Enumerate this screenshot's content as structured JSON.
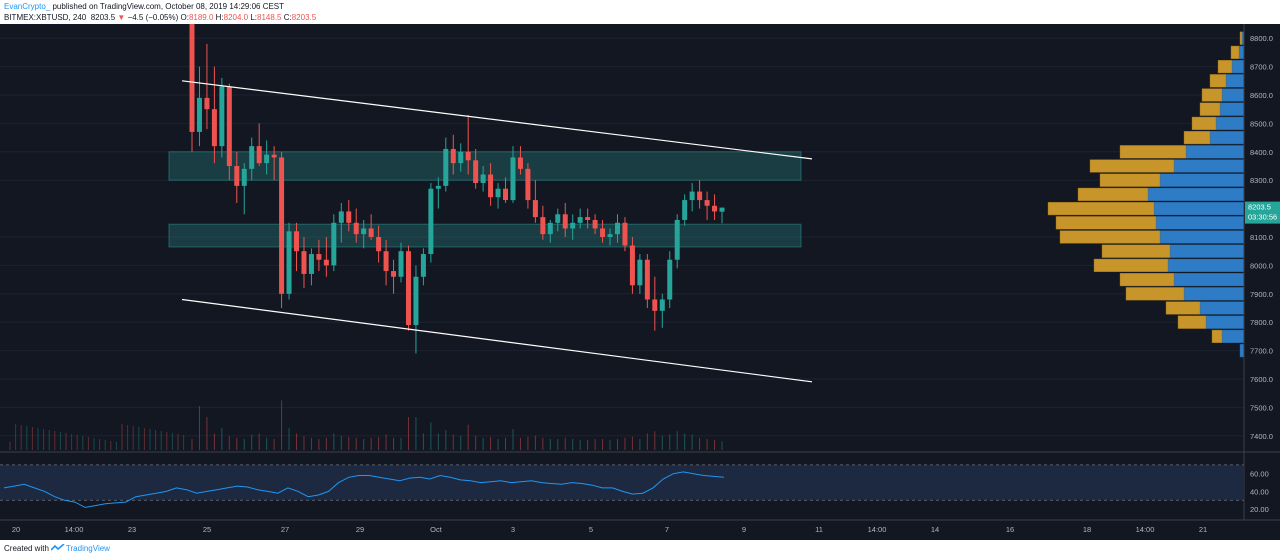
{
  "header": {
    "author": "EvanCrypto_",
    "published": " published on TradingView.com, October 08, 2019 14:29:06 CEST",
    "symbol": "BITMEX:XBTUSD, 240",
    "last": "8203.5",
    "change": "−4.5 (−0.05%)",
    "o_label": "O:",
    "o_value": "8189.0",
    "h_label": "H:",
    "h_value": "8204.0",
    "l_label": "L:",
    "l_value": "8148.5",
    "c_label": "C:",
    "c_value": "8203.5"
  },
  "price_axis": {
    "ticks": [
      "8800.0",
      "8700.0",
      "8600.0",
      "8500.0",
      "8400.0",
      "8300.0",
      "8100.0",
      "8000.0",
      "7900.0",
      "7800.0",
      "7700.0",
      "7600.0",
      "7500.0",
      "7400.0"
    ],
    "last_price": "8203.5",
    "countdown": "03:30:56"
  },
  "rsi_axis": {
    "ticks": [
      "60.00",
      "40.00",
      "20.00"
    ]
  },
  "time_axis": {
    "labels": [
      "20",
      "14:00",
      "23",
      "25",
      "27",
      "29",
      "Oct",
      "3",
      "5",
      "7",
      "9",
      "11",
      "14:00",
      "14",
      "16",
      "18",
      "14:00",
      "21"
    ]
  },
  "colors": {
    "background": "#131722",
    "up": "#26a69a",
    "down": "#ef5350",
    "zone": "#2a8b88",
    "trendline": "#ffffff",
    "vp_up": "#2e7cc5",
    "vp_down": "#c8952a",
    "rsi_line": "#2196f3"
  },
  "chart_data": {
    "type": "candlestick",
    "ylim": [
      7350,
      8850
    ],
    "zones": [
      [
        8300,
        8400
      ],
      [
        8065,
        8145
      ]
    ],
    "trendlines": [
      {
        "from": {
          "x": "Sep 24 12:00",
          "y": 8650
        },
        "to": {
          "x": "Oct 10 22:00",
          "y": 8375
        }
      },
      {
        "from": {
          "x": "Sep 24 12:00",
          "y": 7880
        },
        "to": {
          "x": "Oct 10 22:00",
          "y": 7590
        }
      }
    ],
    "candles": [
      [
        8900,
        8950,
        8400,
        8470
      ],
      [
        8470,
        8700,
        8420,
        8590
      ],
      [
        8590,
        8780,
        8480,
        8550
      ],
      [
        8550,
        8700,
        8360,
        8420
      ],
      [
        8420,
        8660,
        8380,
        8630
      ],
      [
        8630,
        8640,
        8300,
        8350
      ],
      [
        8350,
        8400,
        8220,
        8280
      ],
      [
        8280,
        8360,
        8180,
        8340
      ],
      [
        8340,
        8450,
        8300,
        8420
      ],
      [
        8420,
        8500,
        8350,
        8360
      ],
      [
        8360,
        8440,
        8320,
        8390
      ],
      [
        8390,
        8420,
        8300,
        8380
      ],
      [
        8380,
        8400,
        7850,
        7900
      ],
      [
        7900,
        8150,
        7880,
        8120
      ],
      [
        8120,
        8150,
        7980,
        8050
      ],
      [
        8050,
        8100,
        7920,
        7970
      ],
      [
        7970,
        8060,
        7930,
        8040
      ],
      [
        8040,
        8090,
        7980,
        8020
      ],
      [
        8020,
        8100,
        7960,
        8000
      ],
      [
        8000,
        8180,
        7980,
        8150
      ],
      [
        8150,
        8220,
        8080,
        8190
      ],
      [
        8190,
        8230,
        8120,
        8150
      ],
      [
        8150,
        8200,
        8080,
        8110
      ],
      [
        8110,
        8160,
        8060,
        8130
      ],
      [
        8130,
        8180,
        8090,
        8100
      ],
      [
        8100,
        8140,
        8010,
        8050
      ],
      [
        8050,
        8090,
        7930,
        7980
      ],
      [
        7980,
        8020,
        7900,
        7960
      ],
      [
        7960,
        8080,
        7940,
        8050
      ],
      [
        8050,
        8070,
        7770,
        7790
      ],
      [
        7790,
        8000,
        7690,
        7960
      ],
      [
        7960,
        8060,
        7930,
        8040
      ],
      [
        8040,
        8290,
        8010,
        8270
      ],
      [
        8270,
        8310,
        8200,
        8280
      ],
      [
        8280,
        8450,
        8260,
        8410
      ],
      [
        8410,
        8460,
        8320,
        8360
      ],
      [
        8360,
        8430,
        8330,
        8400
      ],
      [
        8400,
        8530,
        8320,
        8370
      ],
      [
        8370,
        8410,
        8270,
        8290
      ],
      [
        8290,
        8350,
        8260,
        8320
      ],
      [
        8320,
        8360,
        8210,
        8240
      ],
      [
        8240,
        8290,
        8200,
        8270
      ],
      [
        8270,
        8310,
        8220,
        8230
      ],
      [
        8230,
        8420,
        8220,
        8380
      ],
      [
        8380,
        8420,
        8320,
        8340
      ],
      [
        8340,
        8360,
        8200,
        8230
      ],
      [
        8230,
        8300,
        8150,
        8170
      ],
      [
        8170,
        8210,
        8090,
        8110
      ],
      [
        8110,
        8160,
        8080,
        8150
      ],
      [
        8150,
        8200,
        8120,
        8180
      ],
      [
        8180,
        8220,
        8100,
        8130
      ],
      [
        8130,
        8180,
        8090,
        8150
      ],
      [
        8150,
        8200,
        8130,
        8170
      ],
      [
        8170,
        8200,
        8130,
        8160
      ],
      [
        8160,
        8180,
        8110,
        8130
      ],
      [
        8130,
        8160,
        8080,
        8100
      ],
      [
        8100,
        8130,
        8070,
        8110
      ],
      [
        8110,
        8180,
        8080,
        8150
      ],
      [
        8150,
        8170,
        8050,
        8070
      ],
      [
        8070,
        8100,
        7900,
        7930
      ],
      [
        7930,
        8040,
        7900,
        8020
      ],
      [
        8020,
        8040,
        7850,
        7880
      ],
      [
        7880,
        7960,
        7770,
        7840
      ],
      [
        7840,
        7900,
        7780,
        7880
      ],
      [
        7880,
        8050,
        7850,
        8020
      ],
      [
        8020,
        8180,
        7990,
        8160
      ],
      [
        8160,
        8250,
        8140,
        8230
      ],
      [
        8230,
        8290,
        8190,
        8260
      ],
      [
        8260,
        8300,
        8200,
        8230
      ],
      [
        8230,
        8260,
        8160,
        8210
      ],
      [
        8210,
        8250,
        8160,
        8190
      ],
      [
        8189,
        8204,
        8148.5,
        8203.5
      ]
    ],
    "volume_profile": [
      {
        "price": 8800,
        "up": 2,
        "down": 2
      },
      {
        "price": 8750,
        "up": 5,
        "down": 8
      },
      {
        "price": 8700,
        "up": 12,
        "down": 14
      },
      {
        "price": 8650,
        "up": 18,
        "down": 16
      },
      {
        "price": 8600,
        "up": 22,
        "down": 20
      },
      {
        "price": 8550,
        "up": 24,
        "down": 20
      },
      {
        "price": 8500,
        "up": 28,
        "down": 24
      },
      {
        "price": 8450,
        "up": 34,
        "down": 26
      },
      {
        "price": 8400,
        "up": 58,
        "down": 66
      },
      {
        "price": 8350,
        "up": 70,
        "down": 84
      },
      {
        "price": 8300,
        "up": 84,
        "down": 60
      },
      {
        "price": 8250,
        "up": 96,
        "down": 70
      },
      {
        "price": 8200,
        "up": 90,
        "down": 106
      },
      {
        "price": 8150,
        "up": 88,
        "down": 100
      },
      {
        "price": 8100,
        "up": 84,
        "down": 100
      },
      {
        "price": 8050,
        "up": 74,
        "down": 68
      },
      {
        "price": 8000,
        "up": 76,
        "down": 74
      },
      {
        "price": 7950,
        "up": 70,
        "down": 54
      },
      {
        "price": 7900,
        "up": 60,
        "down": 58
      },
      {
        "price": 7850,
        "up": 44,
        "down": 34
      },
      {
        "price": 7800,
        "up": 38,
        "down": 28
      },
      {
        "price": 7750,
        "up": 22,
        "down": 10
      },
      {
        "price": 7700,
        "up": 4,
        "down": 0
      }
    ],
    "rsi": [
      44,
      46,
      48,
      44,
      40,
      34,
      30,
      28,
      22,
      24,
      26,
      27,
      28,
      34,
      36,
      38,
      40,
      44,
      42,
      38,
      40,
      42,
      44,
      46,
      45,
      42,
      40,
      38,
      44,
      40,
      34,
      36,
      40,
      50,
      56,
      58,
      58,
      56,
      54,
      52,
      55,
      56,
      54,
      58,
      56,
      53,
      52,
      50,
      51,
      52,
      50,
      51,
      52,
      50,
      49,
      48,
      50,
      49,
      47,
      44,
      44,
      40,
      37,
      38,
      44,
      54,
      60,
      62,
      60,
      58,
      57,
      56
    ],
    "volume": [
      20,
      80,
      60,
      30,
      40,
      25,
      22,
      20,
      28,
      30,
      22,
      20,
      90,
      40,
      30,
      25,
      22,
      20,
      22,
      30,
      26,
      24,
      22,
      20,
      22,
      24,
      28,
      22,
      22,
      60,
      60,
      30,
      50,
      30,
      36,
      28,
      26,
      46,
      26,
      22,
      24,
      20,
      22,
      38,
      22,
      24,
      26,
      22,
      20,
      20,
      22,
      20,
      18,
      18,
      20,
      20,
      18,
      20,
      22,
      24,
      20,
      30,
      34,
      26,
      28,
      34,
      30,
      28,
      22,
      20,
      18,
      16
    ]
  }
}
